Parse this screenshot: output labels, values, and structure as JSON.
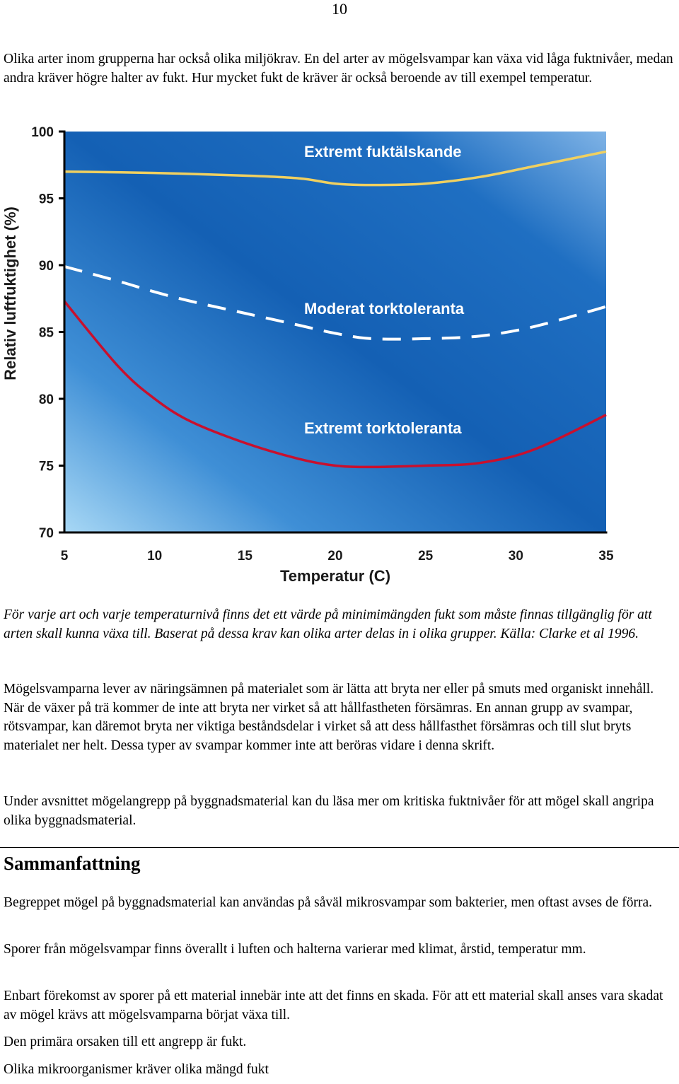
{
  "page_number": "10",
  "intro_paragraph": "Olika arter inom grupperna har också olika miljökrav. En del arter av mögelsvampar kan växa vid låga fuktnivåer, medan andra kräver högre halter av fukt. Hur mycket fukt de kräver är också beroende av till exempel temperatur.",
  "chart_data": {
    "type": "line",
    "xlabel": "Temperatur (C)",
    "ylabel": "Relativ luftfuktighet (%)",
    "xlim": [
      5,
      35
    ],
    "ylim": [
      70,
      100
    ],
    "xticks": [
      "5",
      "10",
      "15",
      "20",
      "25",
      "30",
      "35"
    ],
    "yticks": [
      "70",
      "75",
      "80",
      "85",
      "90",
      "95",
      "100"
    ],
    "grid": false,
    "background": "blue-gradient",
    "series": [
      {
        "name": "Extremt fuktälskande",
        "color": "#f0d060",
        "style": "solid",
        "x": [
          5,
          10,
          15,
          18,
          20,
          22,
          25,
          28,
          31,
          35
        ],
        "y": [
          97.0,
          96.9,
          96.7,
          96.5,
          96.1,
          96.0,
          96.1,
          96.6,
          97.4,
          98.5
        ]
      },
      {
        "name": "Moderat torktoleranta",
        "color": "#ffffff",
        "style": "dashed",
        "x": [
          5,
          8,
          10,
          12,
          15,
          18,
          20,
          22,
          25,
          28,
          31,
          35
        ],
        "y": [
          89.9,
          88.8,
          88.0,
          87.3,
          86.4,
          85.5,
          84.9,
          84.5,
          84.5,
          84.7,
          85.4,
          86.9
        ]
      },
      {
        "name": "Extremt torktoleranta",
        "color": "#c8102e",
        "style": "solid",
        "x": [
          5,
          8,
          10,
          12,
          15,
          18,
          20,
          22,
          25,
          28,
          31,
          35
        ],
        "y": [
          87.3,
          82.4,
          80.0,
          78.3,
          76.7,
          75.5,
          75.0,
          74.9,
          75.0,
          75.2,
          76.2,
          78.8
        ]
      }
    ]
  },
  "caption": "För varje art och varje temperaturnivå finns det ett värde på minimimängden fukt som måste finnas tillgänglig för att arten skall kunna växa till. Baserat på dessa krav kan olika arter delas in i olika grupper. Källa: Clarke et al 1996.",
  "body_paragraph_1": "Mögelsvamparna lever av näringsämnen på materialet som är lätta att bryta ner eller på smuts med organiskt innehåll. När de växer på trä kommer de inte att bryta ner virket så att hållfastheten försämras. En annan grupp av svampar, rötsvampar, kan däremot bryta ner viktiga beståndsdelar i virket så att dess hållfasthet försämras och till slut bryts materialet ner helt. Dessa typer av svampar kommer inte att beröras vidare i denna skrift.",
  "body_paragraph_2": "Under avsnittet mögelangrepp på byggnadsmaterial kan du läsa mer om kritiska fuktnivåer för att mögel skall angripa olika byggnadsmaterial.",
  "summary_heading": "Sammanfattning",
  "summary_paragraphs": [
    "Begreppet mögel på byggnadsmaterial kan användas på såväl mikrosvampar som bakterier, men oftast avses de förra.",
    "Sporer från mögelsvampar finns överallt i luften och halterna varierar med klimat, årstid, temperatur mm.",
    "Enbart förekomst av sporer på ett material innebär inte att det finns en skada. För att ett material skall anses vara skadat av mögel krävs att mögelsvamparna börjat växa till.",
    "Den primära orsaken till ett angrepp är fukt.",
    "Olika mikroorganismer kräver olika mängd fukt"
  ]
}
